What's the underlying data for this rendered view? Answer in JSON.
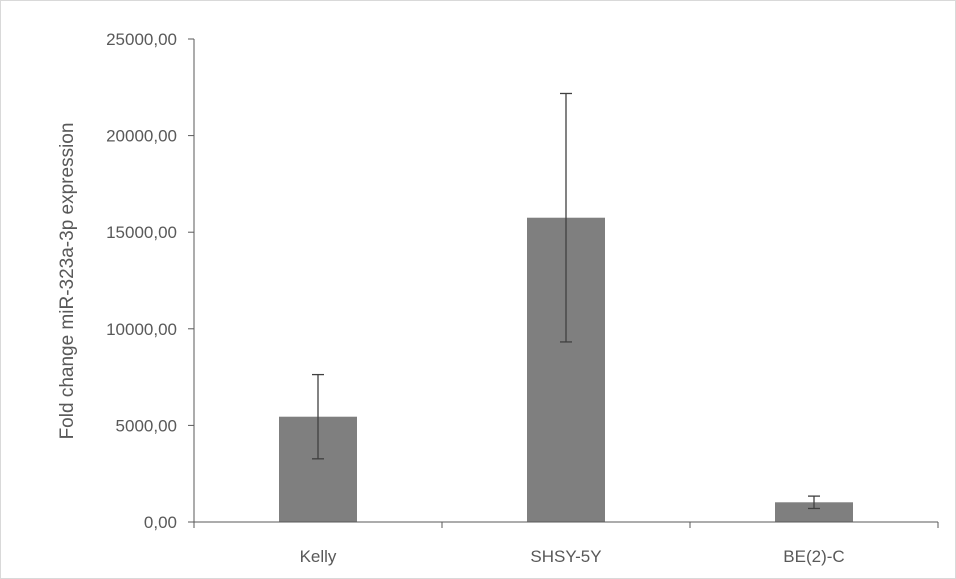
{
  "chart_data": {
    "type": "bar",
    "title": "",
    "xlabel": "",
    "ylabel": "Fold change miR-323a-3p expression",
    "categories": [
      "Kelly",
      "SHSY-5Y",
      "BE(2)-C"
    ],
    "values": [
      5450,
      15750,
      1020
    ],
    "error": [
      2180,
      6430,
      320
    ],
    "ylim": [
      0,
      25000
    ],
    "yticks": [
      0,
      5000,
      10000,
      15000,
      20000,
      25000
    ],
    "ytick_labels": [
      "0,00",
      "5000,00",
      "10000,00",
      "15000,00",
      "20000,00",
      "25000,00"
    ],
    "bar_color": "#7f7f7f",
    "grid": false,
    "legend": "none"
  }
}
